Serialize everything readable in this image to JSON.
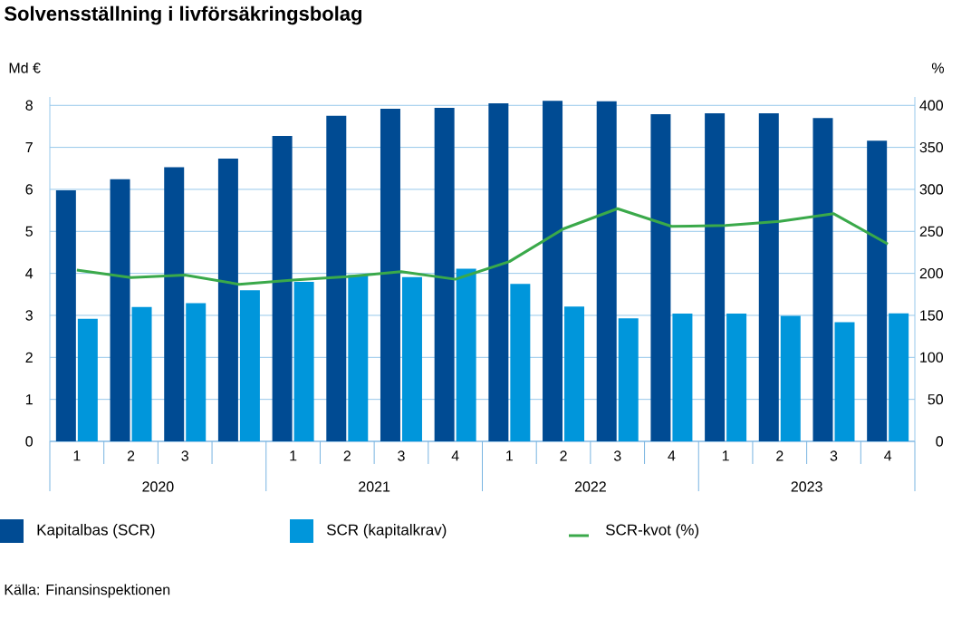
{
  "chart_data": {
    "type": "bar",
    "title": "Solvensställning i livförsäkringsbolag",
    "ylabel": "Md €",
    "y2label": "%",
    "categories": [
      "1",
      "2",
      "3",
      null,
      "1",
      "2",
      "3",
      "4",
      "1",
      "2",
      "3",
      "4",
      "1",
      "2",
      "3",
      "4"
    ],
    "series": [
      {
        "name": "Kapitalbas (SCR)",
        "color": "#004b93",
        "values": [
          5.98,
          6.24,
          6.53,
          6.73,
          7.27,
          7.75,
          7.92,
          7.94,
          8.05,
          8.11,
          8.1,
          7.79,
          7.81,
          7.81,
          7.7,
          7.16
        ]
      },
      {
        "name": "SCR (kapitalkrav)",
        "color": "#0096db",
        "values": [
          2.92,
          3.2,
          3.29,
          3.6,
          3.8,
          3.96,
          3.91,
          4.11,
          3.75,
          3.21,
          2.93,
          3.04,
          3.04,
          2.99,
          2.84,
          3.05
        ]
      },
      {
        "name": "SCR-kvot (%)",
        "color": "#3aa94a",
        "type": "line",
        "axis": "y2",
        "values": [
          204,
          195,
          198,
          187,
          192,
          196,
          202,
          193,
          214,
          253,
          277,
          256,
          257,
          262,
          271,
          235
        ]
      }
    ],
    "ylim": [
      0,
      8.2
    ],
    "yticks": [
      0,
      1,
      2,
      3,
      4,
      5,
      6,
      7,
      8
    ],
    "y2lim": [
      0,
      410
    ],
    "y2ticks": [
      0,
      50,
      100,
      150,
      200,
      250,
      300,
      350,
      400
    ],
    "grid": "y",
    "legend": "bottom",
    "annotations": [
      "2020",
      "2021",
      "2022",
      "2023",
      "Källa: Finansinspektionen"
    ]
  }
}
